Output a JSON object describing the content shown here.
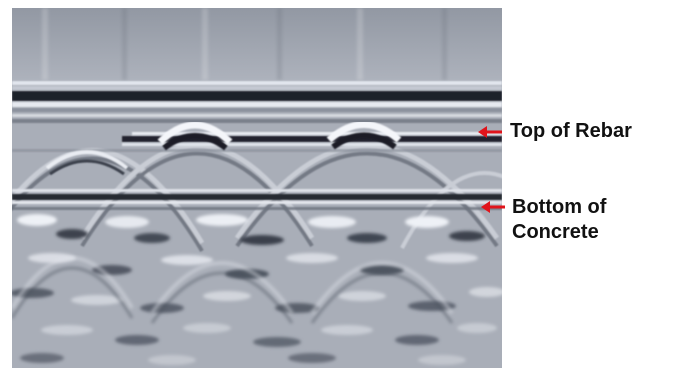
{
  "annotations": {
    "top_label": "Top of Rebar",
    "bottom_label_line1": "Bottom of",
    "bottom_label_line2": "Concrete",
    "arrow_color": "#e0141b"
  },
  "scan": {
    "palette": {
      "background": "#a9aeb8",
      "dark": "#1c2029",
      "light": "#eef1f6"
    }
  }
}
